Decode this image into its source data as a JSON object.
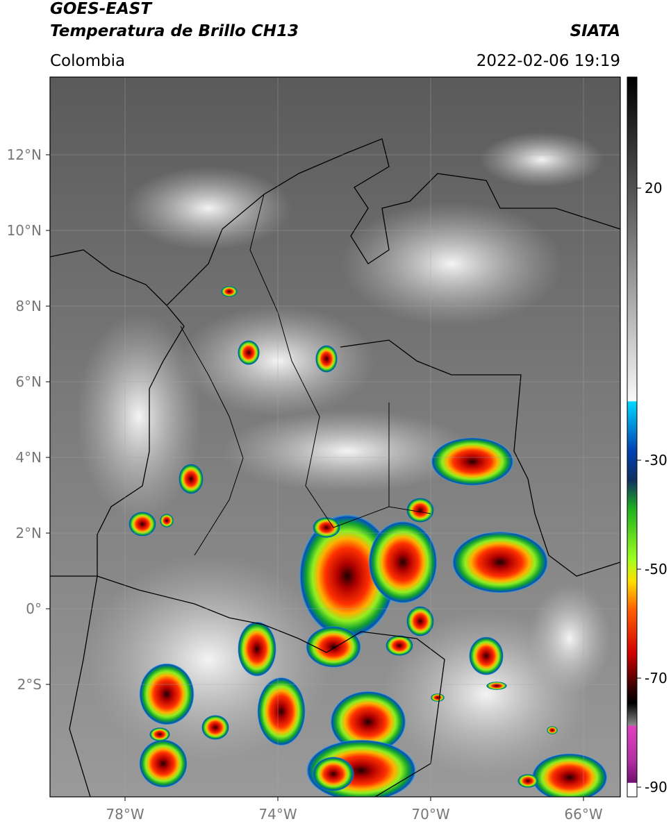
{
  "header": {
    "title_line1": "GOES-EAST",
    "title_line2": "Temperatura de Brillo CH13",
    "region": "Colombia",
    "source": "SIATA",
    "datetime": "2022-02-06 19:19"
  },
  "map": {
    "lat_labels": [
      "12°N",
      "10°N",
      "8°N",
      "6°N",
      "4°N",
      "2°N",
      "0°",
      "2°S"
    ],
    "lon_labels": [
      "78°W",
      "74°W",
      "70°W",
      "66°W"
    ]
  },
  "colorbar": {
    "tick_labels": [
      "20",
      "-30",
      "-50",
      "-70",
      "-90"
    ]
  }
}
